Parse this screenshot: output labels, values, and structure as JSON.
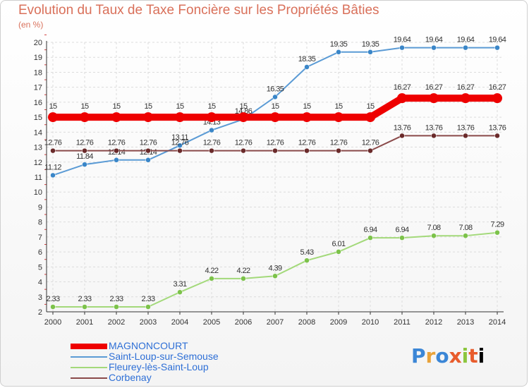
{
  "title": "Evolution du Taux de Taxe Foncière sur les Propriétés Bâties",
  "subtitle": "(en %)",
  "logo": "Proxiti",
  "chart_data": {
    "type": "line",
    "categories": [
      "2000",
      "2001",
      "2002",
      "2003",
      "2004",
      "2005",
      "2006",
      "2007",
      "2008",
      "2009",
      "2010",
      "2011",
      "2012",
      "2013",
      "2014"
    ],
    "ylim": [
      2,
      20
    ],
    "yticks": [
      2,
      3,
      4,
      5,
      6,
      7,
      8,
      9,
      10,
      11,
      12,
      13,
      14,
      15,
      16,
      17,
      18,
      19,
      20
    ],
    "grid": true,
    "series": [
      {
        "name": "Saint-Loup-sur-Semouse",
        "color": "#5b9bd5",
        "point_color": "#3a86c8",
        "values": [
          11.12,
          11.84,
          12.14,
          12.14,
          13.11,
          14.13,
          14.86,
          16.35,
          18.35,
          19.35,
          19.35,
          19.64,
          19.64,
          19.64,
          19.64
        ],
        "labels": [
          "11.12",
          "11.84",
          "12.14",
          "12.14",
          "13.11",
          "14.13",
          "14.86",
          "16.35",
          "18.35",
          "19.35",
          "19.35",
          "19.64",
          "19.64",
          "19.64",
          "19.64"
        ]
      },
      {
        "name": "Fleurey-lès-Saint-Loup",
        "color": "#a3d97a",
        "point_color": "#7cc24a",
        "values": [
          2.33,
          2.33,
          2.33,
          2.33,
          3.31,
          4.22,
          4.22,
          4.39,
          5.43,
          6.01,
          6.94,
          6.94,
          7.08,
          7.08,
          7.29
        ],
        "labels": [
          "2.33",
          "2.33",
          "2.33",
          "2.33",
          "3.31",
          "4.22",
          "4.22",
          "4.39",
          "5.43",
          "6.01",
          "6.94",
          "6.94",
          "7.08",
          "7.08",
          "7.29"
        ]
      },
      {
        "name": "Corbenay",
        "color": "#8a4a4a",
        "point_color": "#6a2a2a",
        "values": [
          12.76,
          12.76,
          12.76,
          12.76,
          12.76,
          12.76,
          12.76,
          12.76,
          12.76,
          12.76,
          12.76,
          13.76,
          13.76,
          13.76,
          13.76
        ],
        "labels": [
          "12.76",
          "12.76",
          "12.76",
          "12.76",
          "12.76",
          "12.76",
          "12.76",
          "12.76",
          "12.76",
          "12.76",
          "12.76",
          "13.76",
          "13.76",
          "13.76",
          "13.76"
        ]
      },
      {
        "name": "MAGNONCOURT",
        "color": "#ee0000",
        "point_color": "#ee0000",
        "values": [
          15,
          15,
          15,
          15,
          15,
          15,
          15,
          15,
          15,
          15,
          15,
          16.27,
          16.27,
          16.27,
          16.27
        ],
        "labels": [
          "15",
          "15",
          "15",
          "15",
          "15",
          "15",
          "15",
          "15",
          "15",
          "15",
          "15",
          "16.27",
          "16.27",
          "16.27",
          "16.27"
        ]
      }
    ],
    "legend": [
      {
        "name": "MAGNONCOURT",
        "color": "#ee0000"
      },
      {
        "name": "Saint-Loup-sur-Semouse",
        "color": "#5b9bd5"
      },
      {
        "name": "Fleurey-lès-Saint-Loup",
        "color": "#a3d97a"
      },
      {
        "name": "Corbenay",
        "color": "#8a4a4a"
      }
    ]
  }
}
